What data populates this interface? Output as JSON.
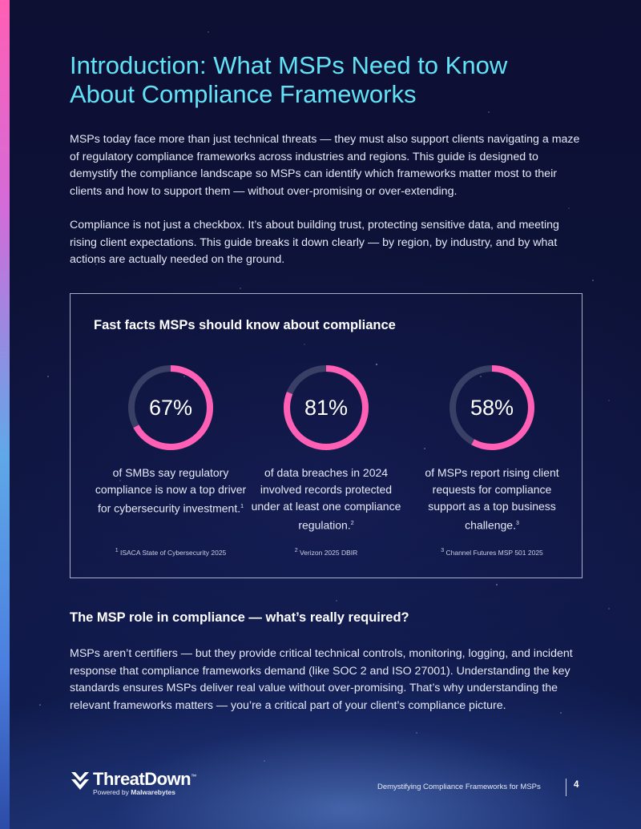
{
  "title": {
    "line1": "Introduction: What MSPs Need to Know",
    "line2": "About Compliance Frameworks"
  },
  "intro": {
    "p1": "MSPs today face more than just technical threats — they must also support clients navigating a maze of regulatory compliance frameworks across industries and regions. This guide is designed to demystify the compliance landscape so MSPs can identify which frameworks matter most to their clients and how to support them — without over-promising or over-extending.",
    "p2": "Compliance is not just a checkbox. It’s about building trust, protecting sensitive data, and meeting rising client expectations. This guide breaks it down clearly — by region, by industry, and by what actions are actually needed on the ground."
  },
  "facts": {
    "title": "Fast facts MSPs should know about compliance",
    "items": [
      {
        "percent_label": "67%",
        "value": 67,
        "text": "of SMBs say regulatory compliance is now a top driver for cybersecurity investment.",
        "ref": "1",
        "source_ref": "1",
        "source": "ISACA State of Cybersecurity 2025"
      },
      {
        "percent_label": "81%",
        "value": 81,
        "text": "of data breaches in 2024 involved records protected under at least one compliance regulation.",
        "ref": "2",
        "source_ref": "2",
        "source": "Verizon 2025 DBIR"
      },
      {
        "percent_label": "58%",
        "value": 58,
        "text": "of MSPs report rising client requests for compliance support as a top business challenge.",
        "ref": "3",
        "source_ref": "3",
        "source": "Channel Futures MSP 501 2025"
      }
    ]
  },
  "role": {
    "heading": "The MSP role in compliance — what’s really required?",
    "body": "MSPs aren’t certifiers — but they provide critical technical controls, monitoring, logging, and incident response that compliance frameworks demand (like SOC 2 and ISO 27001). Understanding the key standards ensures MSPs deliver real value without over-promising. That’s why understanding the relevant frameworks matters — you’re a critical part of your client’s compliance picture."
  },
  "footer": {
    "logo_word": "ThreatDown",
    "logo_tm": "™",
    "logo_powered": "Powered by",
    "logo_brand": "Malwarebytes",
    "doc_title": "Demystifying Compliance Frameworks for MSPs",
    "page_number": "4"
  },
  "colors": {
    "title": "#63e1f5",
    "ring_fill": "#ff5fb4",
    "ring_track": "#3a3f66",
    "background": "#0d1033"
  },
  "icons": {
    "logo": "threatdown-chevron-icon"
  }
}
